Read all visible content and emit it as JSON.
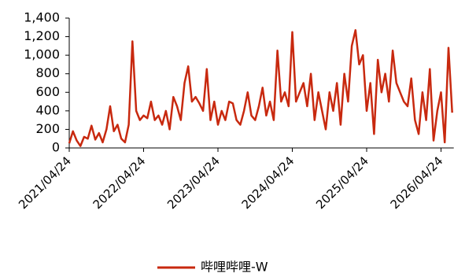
{
  "chart_data": {
    "type": "line",
    "categories": [
      "2021/04/24",
      null,
      null,
      null,
      null,
      null,
      null,
      null,
      null,
      null,
      null,
      null,
      null,
      null,
      null,
      null,
      null,
      null,
      null,
      null,
      "2022/04/24",
      null,
      null,
      null,
      null,
      null,
      null,
      null,
      null,
      null,
      null,
      null,
      null,
      null,
      null,
      null,
      null,
      null,
      null,
      null,
      "2023/04/24",
      null,
      null,
      null,
      null,
      null,
      null,
      null,
      null,
      null,
      null,
      null,
      null,
      null,
      null,
      null,
      null,
      null,
      null,
      null,
      "2024/04/24",
      null,
      null,
      null,
      null,
      null,
      null,
      null,
      null,
      null,
      null,
      null,
      null,
      null,
      null,
      null,
      null,
      null,
      null,
      null,
      "2025/04/24",
      null,
      null,
      null,
      null,
      null,
      null,
      null,
      null,
      null,
      null,
      null,
      null,
      null,
      null,
      null,
      null,
      null,
      null,
      null,
      "2026/04/24",
      null,
      null,
      null
    ],
    "series": [
      {
        "name": "哔哩哔哩-W",
        "color": "#c8290f",
        "values": [
          50,
          180,
          80,
          20,
          120,
          100,
          240,
          90,
          160,
          60,
          200,
          450,
          180,
          250,
          100,
          60,
          250,
          1150,
          400,
          300,
          350,
          320,
          500,
          300,
          350,
          250,
          400,
          200,
          550,
          450,
          300,
          700,
          880,
          500,
          550,
          480,
          400,
          850,
          300,
          500,
          250,
          400,
          300,
          500,
          480,
          300,
          250,
          400,
          600,
          350,
          300,
          450,
          650,
          350,
          500,
          300,
          1050,
          500,
          600,
          450,
          1250,
          500,
          600,
          700,
          450,
          800,
          300,
          600,
          400,
          200,
          600,
          400,
          700,
          250,
          800,
          500,
          1100,
          1270,
          900,
          1000,
          400,
          700,
          150,
          950,
          600,
          800,
          500,
          1050,
          700,
          600,
          500,
          450,
          750,
          300,
          150,
          600,
          300,
          850,
          80,
          400,
          600,
          60,
          1080,
          380
        ]
      }
    ],
    "ylim": [
      0,
      1400
    ],
    "yticks": [
      0,
      200,
      400,
      600,
      800,
      {
        "value": 1000,
        "label": "1,000"
      },
      {
        "value": 1200,
        "label": "1,200"
      },
      {
        "value": 1400,
        "label": "1,400"
      }
    ],
    "legend": "bottom"
  }
}
